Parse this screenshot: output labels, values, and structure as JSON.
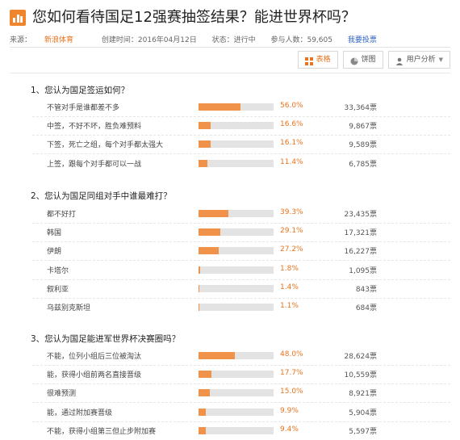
{
  "title": "您如何看待国足12强赛抽签结果？能进世界杯吗？",
  "meta": {
    "source_label": "来源：",
    "source_value": "新浪体育",
    "created": "创建时间：2016年04月12日",
    "status": "状态：进行中",
    "participants": "参与人数：59,605",
    "vote_link": "我要投票"
  },
  "tabs": [
    {
      "label": "表格"
    },
    {
      "label": "饼图"
    },
    {
      "label": "用户分析"
    }
  ],
  "questions": [
    {
      "title": "1、您认为国足签运如何？",
      "options": [
        {
          "label": "不管对手是谁都差不多",
          "percent": 56.0,
          "pct_text": "56.0%",
          "votes": "33,364票"
        },
        {
          "label": "中签，不好不坏，胜负难预料",
          "percent": 16.6,
          "pct_text": "16.6%",
          "votes": "9,867票"
        },
        {
          "label": "下签，死亡之组，每个对手都太强大",
          "percent": 16.1,
          "pct_text": "16.1%",
          "votes": "9,589票"
        },
        {
          "label": "上签，跟每个对手都可以一战",
          "percent": 11.4,
          "pct_text": "11.4%",
          "votes": "6,785票"
        }
      ]
    },
    {
      "title": "2、您认为国足同组对手中谁最难打？",
      "options": [
        {
          "label": "都不好打",
          "percent": 39.3,
          "pct_text": "39.3%",
          "votes": "23,435票"
        },
        {
          "label": "韩国",
          "percent": 29.1,
          "pct_text": "29.1%",
          "votes": "17,321票"
        },
        {
          "label": "伊朗",
          "percent": 27.2,
          "pct_text": "27.2%",
          "votes": "16,227票"
        },
        {
          "label": "卡塔尔",
          "percent": 1.8,
          "pct_text": "1.8%",
          "votes": "1,095票"
        },
        {
          "label": "叙利亚",
          "percent": 1.4,
          "pct_text": "1.4%",
          "votes": "843票"
        },
        {
          "label": "乌兹别克斯坦",
          "percent": 1.1,
          "pct_text": "1.1%",
          "votes": "684票"
        }
      ]
    },
    {
      "title": "3、您认为国足能进军世界杯决赛圈吗？",
      "options": [
        {
          "label": "不能，位列小组后三位被淘汰",
          "percent": 48.0,
          "pct_text": "48.0%",
          "votes": "28,624票"
        },
        {
          "label": "能，获得小组前两名直接晋级",
          "percent": 17.7,
          "pct_text": "17.7%",
          "votes": "10,559票"
        },
        {
          "label": "很难预测",
          "percent": 15.0,
          "pct_text": "15.0%",
          "votes": "8,921票"
        },
        {
          "label": "能，通过附加赛晋级",
          "percent": 9.9,
          "pct_text": "9.9%",
          "votes": "5,904票"
        },
        {
          "label": "不能，获得小组第三但止步附加赛",
          "percent": 9.4,
          "pct_text": "9.4%",
          "votes": "5,597票"
        }
      ]
    }
  ]
}
